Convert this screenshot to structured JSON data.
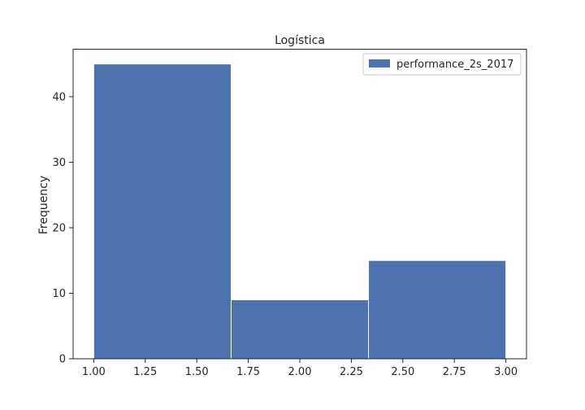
{
  "chart_data": {
    "type": "bar",
    "title": "Logística",
    "xlabel": "",
    "ylabel": "Frequency",
    "bins": [
      {
        "start": 1.0,
        "end": 1.6667,
        "count": 45
      },
      {
        "start": 1.6667,
        "end": 2.3333,
        "count": 9
      },
      {
        "start": 2.3333,
        "end": 3.0,
        "count": 15
      }
    ],
    "series": [
      {
        "name": "performance_2s_2017",
        "values": [
          45,
          9,
          15
        ],
        "color": "#4c72b0"
      }
    ],
    "xlim": [
      0.9,
      3.1
    ],
    "ylim": [
      0,
      47.25
    ],
    "xticks": [
      1.0,
      1.25,
      1.5,
      1.75,
      2.0,
      2.25,
      2.5,
      2.75,
      3.0
    ],
    "xtick_labels": [
      "1.00",
      "1.25",
      "1.50",
      "1.75",
      "2.00",
      "2.25",
      "2.50",
      "2.75",
      "3.00"
    ],
    "yticks": [
      0,
      10,
      20,
      30,
      40
    ],
    "ytick_labels": [
      "0",
      "10",
      "20",
      "30",
      "40"
    ],
    "legend_position": "top-right",
    "grid": false
  }
}
